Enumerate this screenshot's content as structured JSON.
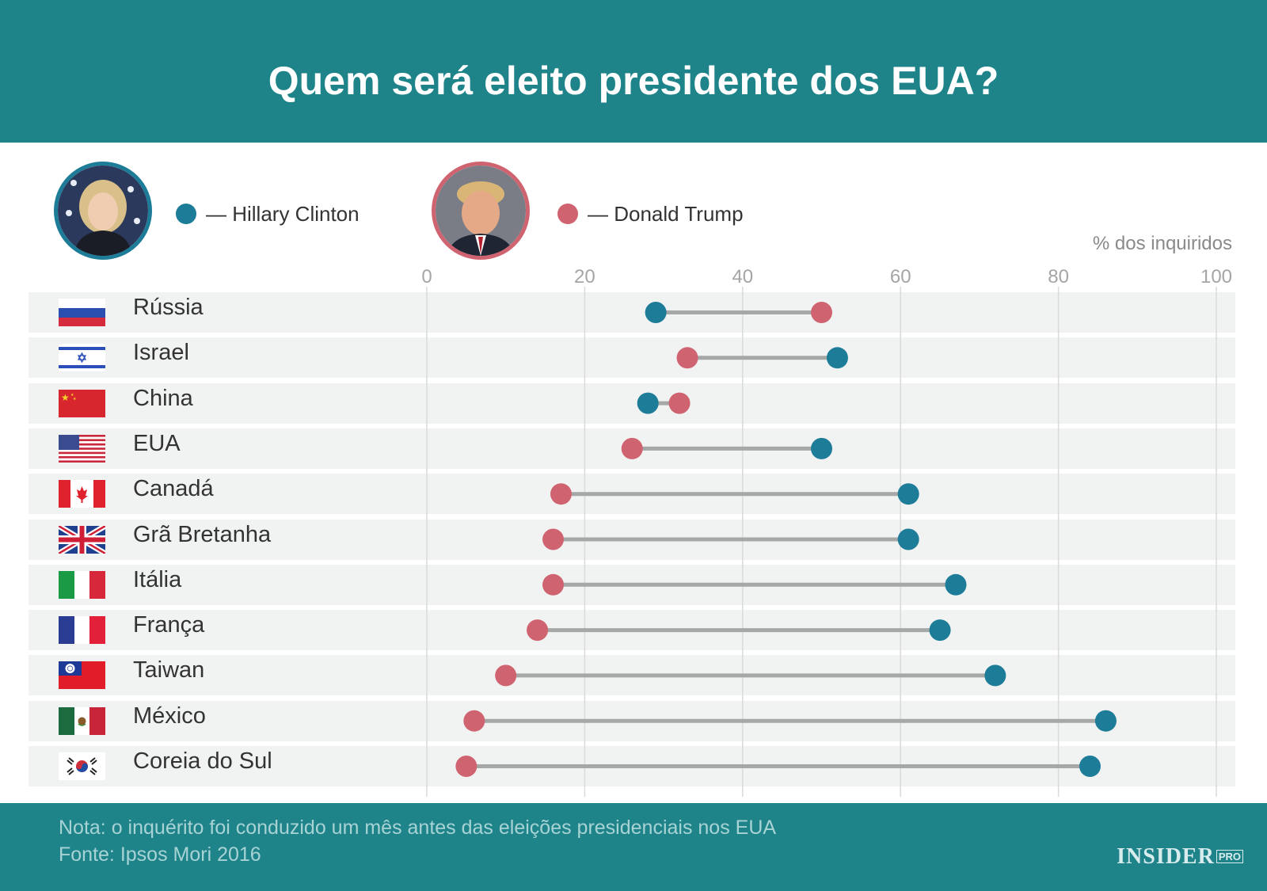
{
  "title": "Quem será eleito presidente dos EUA?",
  "legend": {
    "clinton": {
      "label": "— Hillary Clinton",
      "color": "#1d7c98",
      "photo_icon": "hillary-clinton-portrait"
    },
    "trump": {
      "label": "— Donald Trump",
      "color": "#cf6470",
      "photo_icon": "donald-trump-portrait"
    }
  },
  "footer": {
    "note": "Nota: o inquérito foi conduzido um mês antes das eleições presidenciais nos EUA",
    "source": "Fonte: Ipsos Mori 2016",
    "brand": "INSIDER",
    "brand_suffix": "PRO"
  },
  "chart_data": {
    "type": "dumbbell",
    "title": "Quem será eleito presidente dos EUA?",
    "xlabel": "% dos inquiridos",
    "xlim": [
      0,
      100
    ],
    "xticks": [
      0,
      20,
      40,
      60,
      80,
      100
    ],
    "grid": true,
    "legend_position": "top-left",
    "series": [
      {
        "name": "Hillary Clinton",
        "color": "#1d7c98",
        "values": [
          29,
          52,
          28,
          50,
          61,
          61,
          67,
          65,
          72,
          86,
          84
        ]
      },
      {
        "name": "Donald Trump",
        "color": "#cf6470",
        "values": [
          50,
          33,
          32,
          26,
          17,
          16,
          16,
          14,
          10,
          6,
          5
        ]
      }
    ],
    "categories": [
      "Rússia",
      "Israel",
      "China",
      "EUA",
      "Canadá",
      "Grã Bretanha",
      "Itália",
      "França",
      "Taiwan",
      "México",
      "Coreia do Sul"
    ],
    "flags": [
      "russia-flag-icon",
      "israel-flag-icon",
      "china-flag-icon",
      "usa-flag-icon",
      "canada-flag-icon",
      "uk-flag-icon",
      "italy-flag-icon",
      "france-flag-icon",
      "taiwan-flag-icon",
      "mexico-flag-icon",
      "south-korea-flag-icon"
    ]
  }
}
